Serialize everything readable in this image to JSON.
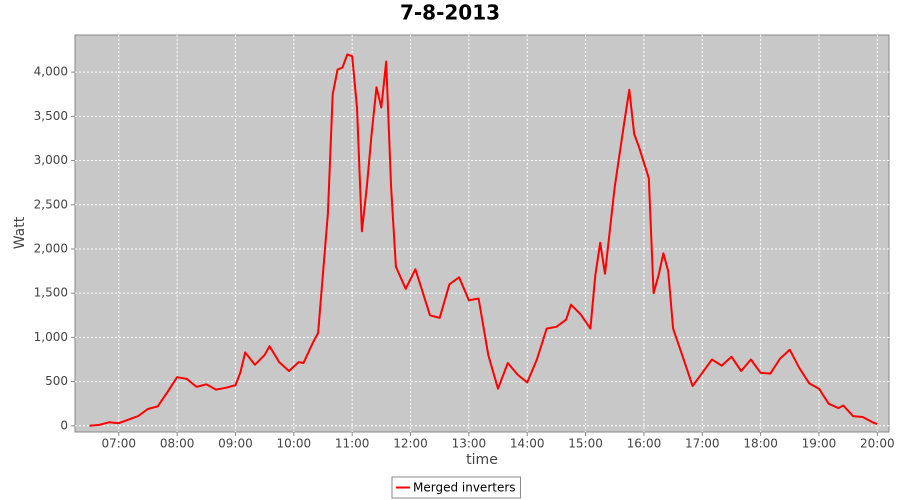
{
  "chart_data": {
    "type": "line",
    "title": "7-8-2013",
    "x_label": "time",
    "y_label": "Watt",
    "x": [
      "06:30",
      "06:40",
      "06:50",
      "07:00",
      "07:10",
      "07:20",
      "07:30",
      "07:40",
      "07:50",
      "08:00",
      "08:10",
      "08:20",
      "08:30",
      "08:40",
      "08:50",
      "09:00",
      "09:05",
      "09:10",
      "09:20",
      "09:30",
      "09:35",
      "09:45",
      "09:55",
      "10:05",
      "10:10",
      "10:20",
      "10:25",
      "10:35",
      "10:40",
      "10:45",
      "10:50",
      "10:55",
      "11:00",
      "11:05",
      "11:10",
      "11:15",
      "11:20",
      "11:25",
      "11:30",
      "11:35",
      "11:40",
      "11:45",
      "11:55",
      "12:05",
      "12:10",
      "12:20",
      "12:30",
      "12:40",
      "12:50",
      "13:00",
      "13:10",
      "13:20",
      "13:30",
      "13:40",
      "13:50",
      "14:00",
      "14:10",
      "14:20",
      "14:30",
      "14:40",
      "14:45",
      "14:55",
      "15:05",
      "15:10",
      "15:15",
      "15:20",
      "15:30",
      "15:40",
      "15:45",
      "15:50",
      "15:55",
      "16:05",
      "16:10",
      "16:15",
      "16:20",
      "16:25",
      "16:30",
      "16:40",
      "16:50",
      "17:00",
      "17:10",
      "17:20",
      "17:30",
      "17:40",
      "17:50",
      "18:00",
      "18:10",
      "18:20",
      "18:30",
      "18:40",
      "18:50",
      "19:00",
      "19:10",
      "19:20",
      "19:25",
      "19:35",
      "19:45",
      "19:55",
      "20:00"
    ],
    "series": [
      {
        "name": "Merged inverters",
        "color": "#ff0000",
        "values": [
          0,
          10,
          40,
          30,
          70,
          110,
          190,
          220,
          380,
          550,
          530,
          440,
          470,
          410,
          430,
          460,
          600,
          830,
          690,
          800,
          900,
          720,
          620,
          720,
          710,
          950,
          1050,
          2400,
          3750,
          4030,
          4050,
          4200,
          4180,
          3600,
          2200,
          2700,
          3300,
          3830,
          3600,
          4120,
          2700,
          1800,
          1550,
          1770,
          1600,
          1250,
          1220,
          1600,
          1680,
          1420,
          1440,
          800,
          420,
          710,
          580,
          490,
          750,
          1100,
          1120,
          1200,
          1370,
          1260,
          1100,
          1700,
          2070,
          1720,
          2700,
          3450,
          3800,
          3300,
          3150,
          2800,
          1500,
          1700,
          1950,
          1750,
          1100,
          780,
          450,
          600,
          750,
          680,
          780,
          620,
          750,
          600,
          590,
          760,
          860,
          650,
          480,
          420,
          250,
          200,
          230,
          110,
          100,
          40,
          20
        ]
      }
    ],
    "xlim": [
      "06:15",
      "20:12"
    ],
    "xticks": [
      "07:00",
      "08:00",
      "09:00",
      "10:00",
      "11:00",
      "12:00",
      "13:00",
      "14:00",
      "15:00",
      "16:00",
      "17:00",
      "18:00",
      "19:00",
      "20:00"
    ],
    "ylim": [
      -70,
      4420
    ],
    "yticks": [
      0,
      500,
      {
        "value": 1000,
        "label": "1,000"
      },
      {
        "value": 1500,
        "label": "1,500"
      },
      {
        "value": 2000,
        "label": "2,000"
      },
      {
        "value": 2500,
        "label": "2,500"
      },
      {
        "value": 3000,
        "label": "3,000"
      },
      {
        "value": 3500,
        "label": "3,500"
      },
      {
        "value": 4000,
        "label": "4,000"
      }
    ],
    "grid": true,
    "background": "#c8c8c8",
    "legend": "bottom"
  }
}
